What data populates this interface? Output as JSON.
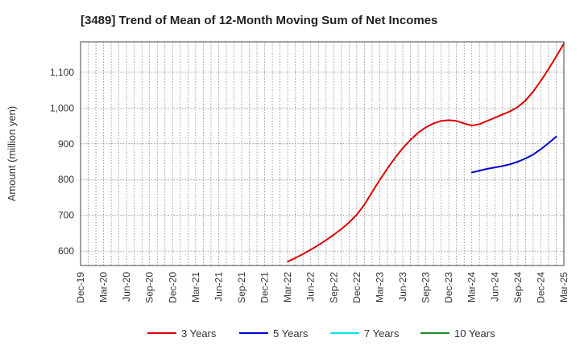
{
  "chart_data": {
    "type": "line",
    "title": "[3489]  Trend of Mean of 12-Month Moving Sum of Net Incomes",
    "ylabel": "Amount (million yen)",
    "xlabel": "",
    "ylim": [
      560,
      1185
    ],
    "yticks": [
      600,
      700,
      800,
      900,
      1000,
      1100
    ],
    "ytick_labels": [
      "600",
      "700",
      "800",
      "900",
      "1,000",
      "1,100"
    ],
    "xtick_labels": [
      "Dec-19",
      "Mar-20",
      "Jun-20",
      "Sep-20",
      "Dec-20",
      "Mar-21",
      "Jun-21",
      "Sep-21",
      "Dec-21",
      "Mar-22",
      "Jun-22",
      "Sep-22",
      "Dec-22",
      "Mar-23",
      "Jun-23",
      "Sep-23",
      "Dec-23",
      "Mar-24",
      "Jun-24",
      "Sep-24",
      "Dec-24",
      "Mar-25"
    ],
    "grid": true,
    "legend_position": "bottom",
    "series": [
      {
        "name": "3 Years",
        "color": "#e00000",
        "start_index": 27,
        "values": [
          571,
          581,
          592,
          604,
          617,
          631,
          646,
          662,
          680,
          702,
          730,
          765,
          799,
          831,
          861,
          888,
          911,
          931,
          946,
          957,
          964,
          966,
          964,
          957,
          951,
          955,
          964,
          973,
          982,
          991,
          1003,
          1021,
          1046,
          1076,
          1109,
          1144,
          1180
        ]
      },
      {
        "name": "5 Years",
        "color": "#0000cc",
        "start_index": 51,
        "values": [
          820,
          825,
          830,
          834,
          838,
          843,
          850,
          859,
          870,
          885,
          902,
          920
        ]
      },
      {
        "name": "7 Years",
        "color": "#00e5ee",
        "start_index": 0,
        "values": []
      },
      {
        "name": "10 Years",
        "color": "#228b22",
        "start_index": 0,
        "values": []
      }
    ]
  }
}
